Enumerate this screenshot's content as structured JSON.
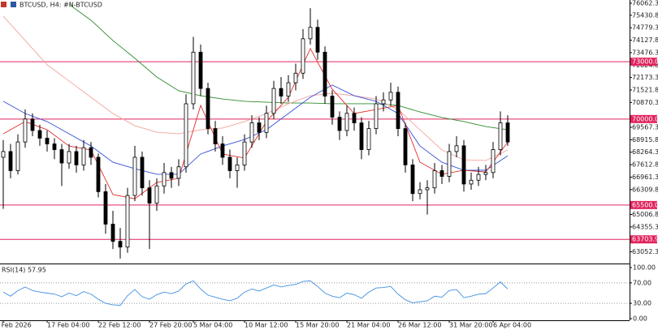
{
  "chart_data": [
    {
      "type": "candlestick",
      "title": "BTCUSD, H4: #N-BTCUSD",
      "categories": [
        "1 Feb 2026",
        null,
        null,
        null,
        null,
        null,
        "17 Feb 04:00",
        null,
        null,
        null,
        null,
        null,
        null,
        "22 Feb 12:00",
        null,
        null,
        null,
        null,
        null,
        null,
        "27 Feb 20:00",
        null,
        null,
        null,
        null,
        null,
        "5 Mar 04:00",
        null,
        null,
        null,
        null,
        null,
        null,
        "10 Mar 12:00",
        null,
        null,
        null,
        null,
        null,
        null,
        "15 Mar 20:00",
        null,
        null,
        null,
        null,
        null,
        null,
        "21 Mar 04:00",
        null,
        null,
        null,
        null,
        null,
        null,
        "26 Mar 12:00",
        null,
        null,
        null,
        null,
        null,
        null,
        "31 Mar 20:00",
        null,
        null,
        null,
        null,
        null,
        "6 Apr 04:00",
        null,
        null
      ],
      "open": [
        68000,
        68300,
        67300,
        68800,
        70000,
        69400,
        69000,
        68700,
        68400,
        67700,
        68300,
        67600,
        68500,
        68000,
        66200,
        64500,
        63600,
        63300,
        66000,
        68000,
        66400,
        65600,
        66500,
        67200,
        66900,
        67500,
        70800,
        73500,
        71600,
        69500,
        68700,
        68000,
        67300,
        67600,
        68800,
        69800,
        69300,
        70300,
        71600,
        71200,
        71900,
        72400,
        74200,
        74800,
        73500,
        71200,
        70100,
        69400,
        70300,
        69800,
        68400,
        69500,
        70800,
        71000,
        71400,
        69500,
        67600,
        66100,
        66300,
        66400,
        67300,
        67000,
        68300,
        68600,
        66600,
        66800,
        67100,
        67200,
        68400,
        69800
      ],
      "high": [
        68900,
        68700,
        69200,
        70500,
        70300,
        69700,
        69400,
        69000,
        68700,
        68700,
        68600,
        68900,
        68800,
        68200,
        66600,
        65200,
        64300,
        66400,
        68600,
        68300,
        66800,
        66900,
        67700,
        67500,
        67900,
        71300,
        74300,
        73900,
        71900,
        69900,
        69100,
        68400,
        68000,
        69200,
        70200,
        70100,
        70700,
        72000,
        72200,
        72300,
        72900,
        74700,
        75800,
        75200,
        73800,
        71500,
        70400,
        70700,
        70600,
        70100,
        69900,
        71200,
        71400,
        71900,
        71700,
        69800,
        67900,
        66700,
        66800,
        67700,
        67600,
        68700,
        69100,
        68900,
        67200,
        67500,
        67600,
        68800,
        70400,
        70200
      ],
      "low": [
        65300,
        66900,
        67100,
        68500,
        69100,
        68600,
        68300,
        67900,
        66500,
        67400,
        67200,
        67300,
        67600,
        65900,
        64000,
        63200,
        62700,
        63000,
        65700,
        66000,
        63200,
        65200,
        66100,
        66400,
        66500,
        67200,
        70500,
        71200,
        69200,
        68300,
        67600,
        66900,
        66400,
        67300,
        68500,
        68900,
        69000,
        70000,
        70800,
        70900,
        71500,
        72100,
        73900,
        73100,
        70800,
        69700,
        68900,
        69100,
        69400,
        67900,
        68100,
        69200,
        70400,
        70700,
        69100,
        67200,
        65700,
        65800,
        65000,
        66100,
        66600,
        66700,
        68000,
        66200,
        66300,
        66500,
        66800,
        66900,
        68100,
        68600
      ],
      "close": [
        68300,
        67300,
        68800,
        70000,
        69400,
        69000,
        68700,
        68400,
        67700,
        68300,
        67600,
        68500,
        68000,
        66200,
        64500,
        63600,
        63300,
        66000,
        68000,
        66400,
        65600,
        66500,
        67200,
        66900,
        67500,
        70800,
        73500,
        71600,
        69500,
        68700,
        68000,
        67300,
        67600,
        68800,
        69800,
        69300,
        70300,
        71600,
        71200,
        71900,
        72400,
        74200,
        74800,
        73500,
        71200,
        70100,
        69400,
        70300,
        69800,
        68400,
        69500,
        70800,
        71000,
        71400,
        69500,
        67600,
        66100,
        66300,
        66400,
        67300,
        67000,
        68300,
        68600,
        66600,
        66800,
        67100,
        67200,
        68400,
        69800,
        68800
      ],
      "series": [
        {
          "color": "#2e8b2e",
          "x": [
            9,
            12,
            15,
            18,
            21,
            24,
            27,
            30,
            33,
            36,
            39,
            42,
            45,
            48,
            51,
            54,
            57,
            60,
            63,
            66,
            69
          ],
          "values": [
            76000,
            75170,
            74110,
            73180,
            72200,
            71480,
            71220,
            71050,
            70930,
            70880,
            70840,
            70840,
            70800,
            70800,
            70800,
            70710,
            70370,
            70080,
            69870,
            69610,
            69440
          ]
        },
        {
          "color": "#f2a49c",
          "x": [
            0,
            3,
            6,
            9,
            12,
            15,
            18,
            21,
            24,
            27,
            30,
            33,
            36,
            39,
            42,
            45,
            48,
            51,
            54,
            57,
            60,
            63,
            66,
            69
          ],
          "values": [
            75380,
            74110,
            72840,
            71990,
            71140,
            70290,
            69650,
            69310,
            69230,
            69440,
            69530,
            69870,
            70290,
            70800,
            71220,
            71350,
            71220,
            71050,
            70500,
            69440,
            68380,
            67870,
            67830,
            68380
          ]
        },
        {
          "color": "#3550d8",
          "x": [
            0,
            3,
            6,
            9,
            12,
            15,
            18,
            21,
            24,
            27,
            30,
            33,
            36,
            39,
            42,
            45,
            48,
            51,
            54,
            57,
            60,
            63,
            66,
            69
          ],
          "values": [
            70930,
            70290,
            69870,
            69230,
            68590,
            67740,
            67400,
            67110,
            67110,
            68170,
            68590,
            68930,
            69440,
            70290,
            71140,
            71780,
            71220,
            70930,
            70290,
            68590,
            67740,
            67320,
            67320,
            68080
          ]
        },
        {
          "color": "#e0302c",
          "x": [
            0,
            3,
            6,
            9,
            12,
            15,
            18,
            21,
            24,
            27,
            30,
            33,
            36,
            39,
            42,
            45,
            48,
            51,
            54,
            57,
            60,
            63,
            66,
            69
          ],
          "values": [
            69230,
            69870,
            69440,
            68590,
            68380,
            66050,
            65830,
            66680,
            66900,
            70710,
            68170,
            67960,
            69870,
            71140,
            73690,
            71560,
            70290,
            70500,
            70710,
            67740,
            67110,
            67320,
            67230,
            68800
          ]
        }
      ],
      "levels": [
        {
          "value": 73000,
          "label": "73000.0"
        },
        {
          "value": 70000,
          "label": "70000.0"
        },
        {
          "value": 65500,
          "label": "65500.0"
        },
        {
          "value": 63703.9,
          "label": "63703.9"
        }
      ],
      "level_color": "#e0245e",
      "ylim": [
        62440,
        76230
      ],
      "yticks": [
        76062.3,
        75430.8,
        74779.3,
        74127.8,
        73476.3,
        72824.8,
        72173.3,
        71521.8,
        70870.3,
        69567.3,
        68915.8,
        68264.3,
        67612.8,
        66961.3,
        66309.8,
        65006.8,
        64355.3,
        63052.3
      ]
    },
    {
      "type": "line",
      "title": "RSI(14) 57.95",
      "color": "#3f8fe0",
      "values": [
        52,
        44,
        55,
        62,
        55,
        52,
        50,
        48,
        43,
        50,
        45,
        53,
        48,
        38,
        30,
        27,
        26,
        45,
        57,
        43,
        38,
        47,
        52,
        49,
        54,
        68,
        74,
        58,
        46,
        42,
        38,
        35,
        40,
        52,
        58,
        54,
        60,
        66,
        62,
        65,
        67,
        73,
        74,
        63,
        50,
        44,
        41,
        50,
        47,
        40,
        52,
        60,
        61,
        63,
        48,
        37,
        31,
        33,
        35,
        44,
        42,
        55,
        57,
        41,
        44,
        48,
        49,
        60,
        72,
        57.95
      ],
      "ylim": [
        0,
        100
      ],
      "yticks": [
        {
          "value": 100,
          "label": "100.00"
        },
        {
          "value": 70,
          "label": "70.00"
        },
        {
          "value": 30,
          "label": "30.00"
        },
        {
          "value": 0,
          "label": "0.00"
        }
      ],
      "levels": [
        70,
        30
      ]
    }
  ]
}
